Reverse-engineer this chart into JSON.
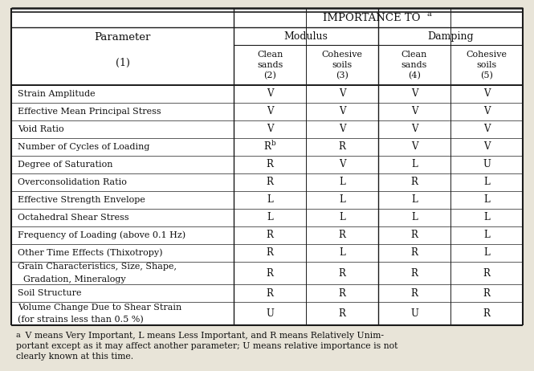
{
  "title": "IMPORTANCE TO",
  "title_sup": "a",
  "col_group1": "Modulus",
  "col_group2": "Damping",
  "col_headers": [
    "Clean\nsands\n(2)",
    "Cohesive\nsoils\n(3)",
    "Clean\nsands\n(4)",
    "Cohesive\nsoils\n(5)"
  ],
  "param_header": "Parameter",
  "param_num": "(1)",
  "rows": [
    [
      "Strain Amplitude",
      "V",
      "V",
      "V",
      "V"
    ],
    [
      "Effective Mean Principal Stress",
      "V",
      "V",
      "V",
      "V"
    ],
    [
      "Void Ratio",
      "V",
      "V",
      "V",
      "V"
    ],
    [
      "Number of Cycles of Loading",
      "Rb",
      "R",
      "V",
      "V"
    ],
    [
      "Degree of Saturation",
      "R",
      "V",
      "L",
      "U"
    ],
    [
      "Overconsolidation Ratio",
      "R",
      "L",
      "R",
      "L"
    ],
    [
      "Effective Strength Envelope",
      "L",
      "L",
      "L",
      "L"
    ],
    [
      "Octahedral Shear Stress",
      "L",
      "L",
      "L",
      "L"
    ],
    [
      "Frequency of Loading (above 0.1 Hz)",
      "R",
      "R",
      "R",
      "L"
    ],
    [
      "Other Time Effects (Thixotropy)",
      "R",
      "L",
      "R",
      "L"
    ],
    [
      "Grain Characteristics, Size, Shape,|  Gradation, Mineralogy",
      "R",
      "R",
      "R",
      "R"
    ],
    [
      "Soil Structure",
      "R",
      "R",
      "R",
      "R"
    ],
    [
      "Volume Change Due to Shear Strain|(for strains less than 0.5 %)",
      "U",
      "R",
      "U",
      "R"
    ]
  ],
  "footnote_sup": "a",
  "footnote_line1": " V means Very Important, L means Less Important, and R means Relatively Unim-",
  "footnote_line2": "portant except as it may affect another parameter; U means relative importance is not",
  "footnote_line3": "clearly known at this time.",
  "bg_color": "#e8e4d8",
  "table_bg": "#ffffff",
  "line_color": "#1a1a1a",
  "text_color": "#111111"
}
